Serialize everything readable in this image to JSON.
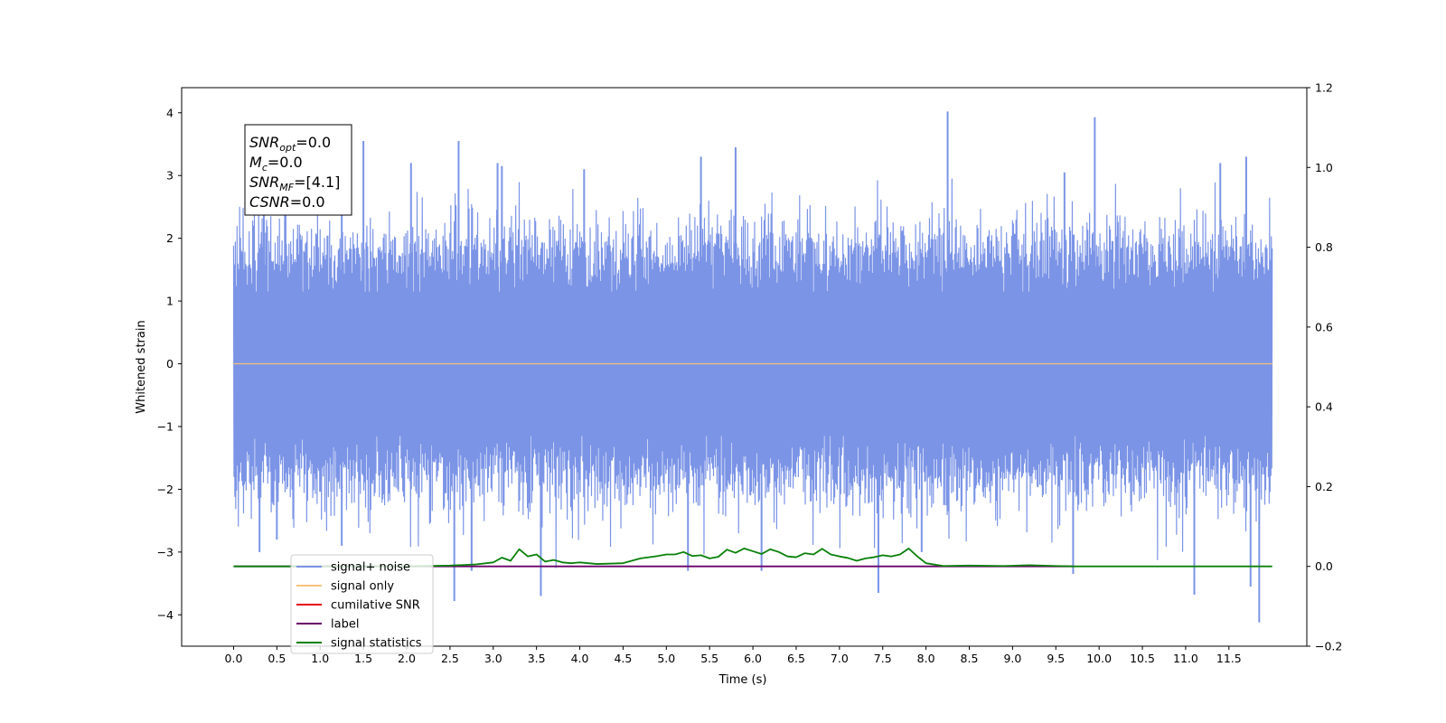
{
  "chart_data": {
    "type": "line",
    "xlabel": "Time (s)",
    "ylabel": "Whitened strain",
    "xlim": [
      -0.6,
      12.4
    ],
    "ylim": [
      -4.5,
      4.4
    ],
    "y2lim": [
      -0.2,
      1.2
    ],
    "x_ticks": [
      0.0,
      0.5,
      1.0,
      1.5,
      2.0,
      2.5,
      3.0,
      3.5,
      4.0,
      4.5,
      5.0,
      5.5,
      6.0,
      6.5,
      7.0,
      7.5,
      8.0,
      8.5,
      9.0,
      9.5,
      10.0,
      10.5,
      11.0,
      11.5
    ],
    "x_tick_labels": [
      "0.0",
      "0.5",
      "1.0",
      "1.5",
      "2.0",
      "2.5",
      "3.0",
      "3.5",
      "4.0",
      "4.5",
      "5.0",
      "5.5",
      "6.0",
      "6.5",
      "7.0",
      "7.5",
      "8.0",
      "8.5",
      "9.0",
      "9.5",
      "10.0",
      "10.5",
      "11.0",
      "11.5"
    ],
    "y_ticks": [
      -4,
      -3,
      -2,
      -1,
      0,
      1,
      2,
      3,
      4
    ],
    "y_tick_labels": [
      "−4",
      "−3",
      "−2",
      "−1",
      "0",
      "1",
      "2",
      "3",
      "4"
    ],
    "y2_ticks": [
      -0.2,
      0.0,
      0.2,
      0.4,
      0.6,
      0.8,
      1.0,
      1.2
    ],
    "y2_tick_labels": [
      "−0.2",
      "0.0",
      "0.2",
      "0.4",
      "0.6",
      "0.8",
      "1.0",
      "1.2"
    ],
    "legend_position": "lower-left",
    "grid": false,
    "annotation": [
      {
        "name": "SNR",
        "sub": "opt",
        "value": "=0.0"
      },
      {
        "name": "M",
        "sub": "c",
        "value": "=0.0"
      },
      {
        "name": "SNR",
        "sub": "MF",
        "value": "=[4.1]"
      },
      {
        "name": "CSNR",
        "sub": "",
        "value": "=0.0"
      }
    ],
    "series": [
      {
        "name": "signal+ noise",
        "color": "#7b94e6",
        "axis": "left",
        "x_range": [
          0.0,
          12.0
        ],
        "typical_envelope": [
          -2.1,
          2.4
        ],
        "peaks": [
          {
            "x": 0.35,
            "y": 2.5
          },
          {
            "x": 0.6,
            "y": 2.6
          },
          {
            "x": 1.25,
            "y": 2.9
          },
          {
            "x": 1.5,
            "y": 3.55
          },
          {
            "x": 2.05,
            "y": 3.2
          },
          {
            "x": 2.6,
            "y": 3.55
          },
          {
            "x": 3.05,
            "y": 3.2
          },
          {
            "x": 3.1,
            "y": 3.15
          },
          {
            "x": 4.05,
            "y": 3.1
          },
          {
            "x": 5.8,
            "y": 3.45
          },
          {
            "x": 5.4,
            "y": 3.3
          },
          {
            "x": 8.25,
            "y": 4.02
          },
          {
            "x": 9.6,
            "y": 3.05
          },
          {
            "x": 9.95,
            "y": 3.93
          },
          {
            "x": 11.7,
            "y": 3.3
          },
          {
            "x": 11.4,
            "y": 3.2
          }
        ],
        "troughs": [
          {
            "x": 0.3,
            "y": -3.0
          },
          {
            "x": 0.5,
            "y": -2.8
          },
          {
            "x": 1.25,
            "y": -2.9
          },
          {
            "x": 2.55,
            "y": -3.78
          },
          {
            "x": 2.75,
            "y": -3.3
          },
          {
            "x": 3.55,
            "y": -3.7
          },
          {
            "x": 5.25,
            "y": -3.3
          },
          {
            "x": 6.1,
            "y": -3.3
          },
          {
            "x": 7.45,
            "y": -3.65
          },
          {
            "x": 7.95,
            "y": -3.0
          },
          {
            "x": 9.7,
            "y": -3.35
          },
          {
            "x": 11.1,
            "y": -3.68
          },
          {
            "x": 11.75,
            "y": -3.55
          },
          {
            "x": 11.85,
            "y": -4.12
          }
        ]
      },
      {
        "name": "signal only",
        "color": "#f6c27a",
        "axis": "left",
        "x": [
          0.0,
          12.0
        ],
        "y": [
          0.0,
          0.0
        ]
      },
      {
        "name": "cumilative SNR",
        "color": "#e8000b",
        "axis": "right",
        "x": [],
        "y": []
      },
      {
        "name": "label",
        "color": "#6a006a",
        "axis": "right",
        "x": [
          0.0,
          9.7
        ],
        "y": [
          0.0,
          0.0
        ]
      },
      {
        "name": "signal statistics",
        "color": "#0a800a",
        "axis": "right",
        "x": [
          0.0,
          2.0,
          2.5,
          2.8,
          3.0,
          3.1,
          3.2,
          3.3,
          3.4,
          3.5,
          3.6,
          3.7,
          3.8,
          3.9,
          4.0,
          4.2,
          4.5,
          4.7,
          4.9,
          5.0,
          5.1,
          5.2,
          5.3,
          5.4,
          5.5,
          5.6,
          5.7,
          5.8,
          5.9,
          6.0,
          6.1,
          6.2,
          6.3,
          6.4,
          6.5,
          6.6,
          6.7,
          6.8,
          6.9,
          7.0,
          7.1,
          7.2,
          7.3,
          7.4,
          7.5,
          7.6,
          7.7,
          7.8,
          7.9,
          8.0,
          8.2,
          8.5,
          8.9,
          9.2,
          9.5,
          9.7,
          10.0,
          12.0
        ],
        "y": [
          0.0,
          0.0,
          0.002,
          0.005,
          0.01,
          0.022,
          0.014,
          0.043,
          0.025,
          0.03,
          0.012,
          0.016,
          0.01,
          0.008,
          0.01,
          0.006,
          0.008,
          0.02,
          0.026,
          0.03,
          0.03,
          0.036,
          0.026,
          0.028,
          0.02,
          0.024,
          0.042,
          0.034,
          0.045,
          0.038,
          0.031,
          0.043,
          0.036,
          0.025,
          0.023,
          0.033,
          0.03,
          0.044,
          0.03,
          0.025,
          0.021,
          0.014,
          0.02,
          0.023,
          0.028,
          0.025,
          0.03,
          0.045,
          0.025,
          0.008,
          0.001,
          0.002,
          0.001,
          0.003,
          0.001,
          0.0,
          0.0,
          0.0
        ]
      }
    ]
  }
}
